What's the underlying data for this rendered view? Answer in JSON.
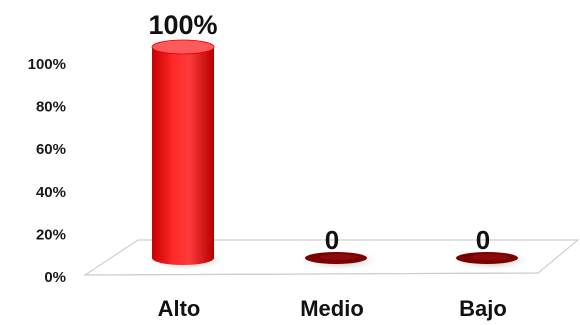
{
  "chart_data": {
    "type": "bar",
    "categories": [
      "Alto",
      "Medio",
      "Bajo"
    ],
    "values": [
      100,
      0,
      0
    ],
    "data_labels": [
      "100%",
      "0",
      "0"
    ],
    "ylim": [
      0,
      100
    ],
    "yticks": [
      "0%",
      "20%",
      "40%",
      "60%",
      "80%",
      "100%"
    ],
    "title": "",
    "xlabel": "",
    "ylabel": "",
    "grid": false,
    "legend": "none",
    "style": "3d-cylinder",
    "colors": {
      "bar": "#ff1a1a",
      "bar_dark": "#b30000",
      "bar_top": "#ff5a5a",
      "zero_bar": "#7a0000",
      "floor_edge": "#c8c8c8"
    }
  }
}
